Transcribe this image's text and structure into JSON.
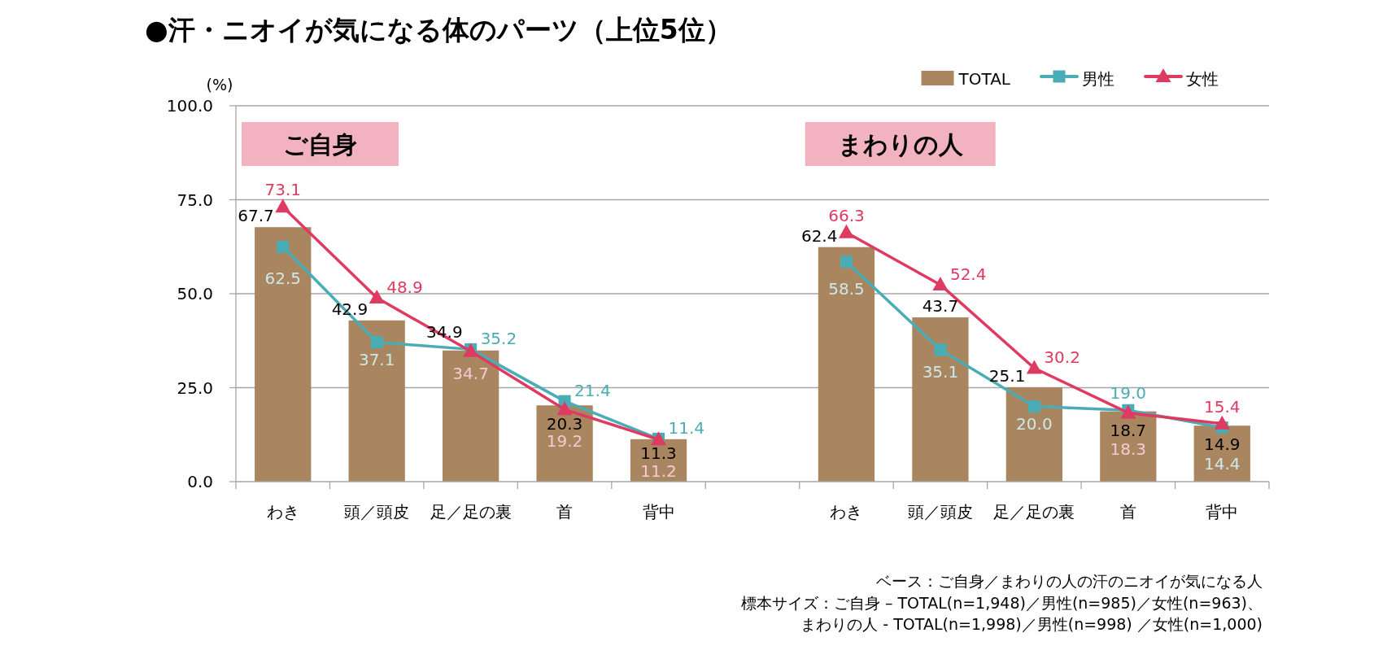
{
  "chart_data": {
    "type": "bar",
    "title": "●汗・ニオイが気になる体のパーツ（上位5位）",
    "ylabel": "(%)",
    "categories": [
      "わき",
      "頭／頭皮",
      "足／足の裏",
      "首",
      "背中",
      null,
      "わき",
      "頭／頭皮",
      "足／足の裏",
      "首",
      "背中"
    ],
    "series": [
      {
        "name": "TOTAL",
        "color": "#a9865f",
        "values": [
          67.7,
          42.9,
          34.9,
          20.3,
          11.3,
          null,
          62.4,
          43.7,
          25.1,
          18.7,
          14.9
        ],
        "value_labels": [
          "67.7",
          "42.9",
          "34.9",
          "20.3",
          "11.3",
          null,
          "62.4",
          "43.7",
          "25.1",
          "18.7",
          "14.9"
        ]
      },
      {
        "name": "男性",
        "type": "line",
        "color": "#4aacb5",
        "marker": "square",
        "values": [
          62.5,
          37.1,
          35.2,
          21.4,
          11.4,
          null,
          58.5,
          35.1,
          20.0,
          19.0,
          14.4
        ],
        "value_labels": [
          "62.5",
          "37.1",
          "35.2",
          "21.4",
          "11.4",
          null,
          "58.5",
          "35.1",
          "20.0",
          "19.0",
          "14.4"
        ]
      },
      {
        "name": "女性",
        "type": "line",
        "color": "#df3a61",
        "marker": "triangle",
        "values": [
          73.1,
          48.9,
          34.7,
          19.2,
          11.2,
          null,
          66.3,
          52.4,
          30.2,
          18.3,
          15.4
        ],
        "value_labels": [
          "73.1",
          "48.9",
          "34.7",
          "19.2",
          "11.2",
          null,
          "66.3",
          "52.4",
          "30.2",
          "18.3",
          "15.4"
        ]
      }
    ],
    "ylim": [
      0,
      100
    ],
    "yticks": [
      {
        "value": 0,
        "label": "0.0"
      },
      {
        "value": 25,
        "label": "25.0"
      },
      {
        "value": 50,
        "label": "50.0"
      },
      {
        "value": 75,
        "label": "75.0"
      },
      {
        "value": 100,
        "label": "100.0"
      }
    ],
    "grid": "y",
    "legend": "top right",
    "annotations": [
      "ご自身",
      "まわりの人",
      "ベース：ご自身／まわりの人の汗のニオイが気になる人",
      "標本サイズ：ご自身 – TOTAL(n=1,948)／男性(n=985)／女性(n=963)、",
      "まわりの人 - TOTAL(n=1,998)／男性(n=998) ／女性(n=1,000)"
    ]
  }
}
